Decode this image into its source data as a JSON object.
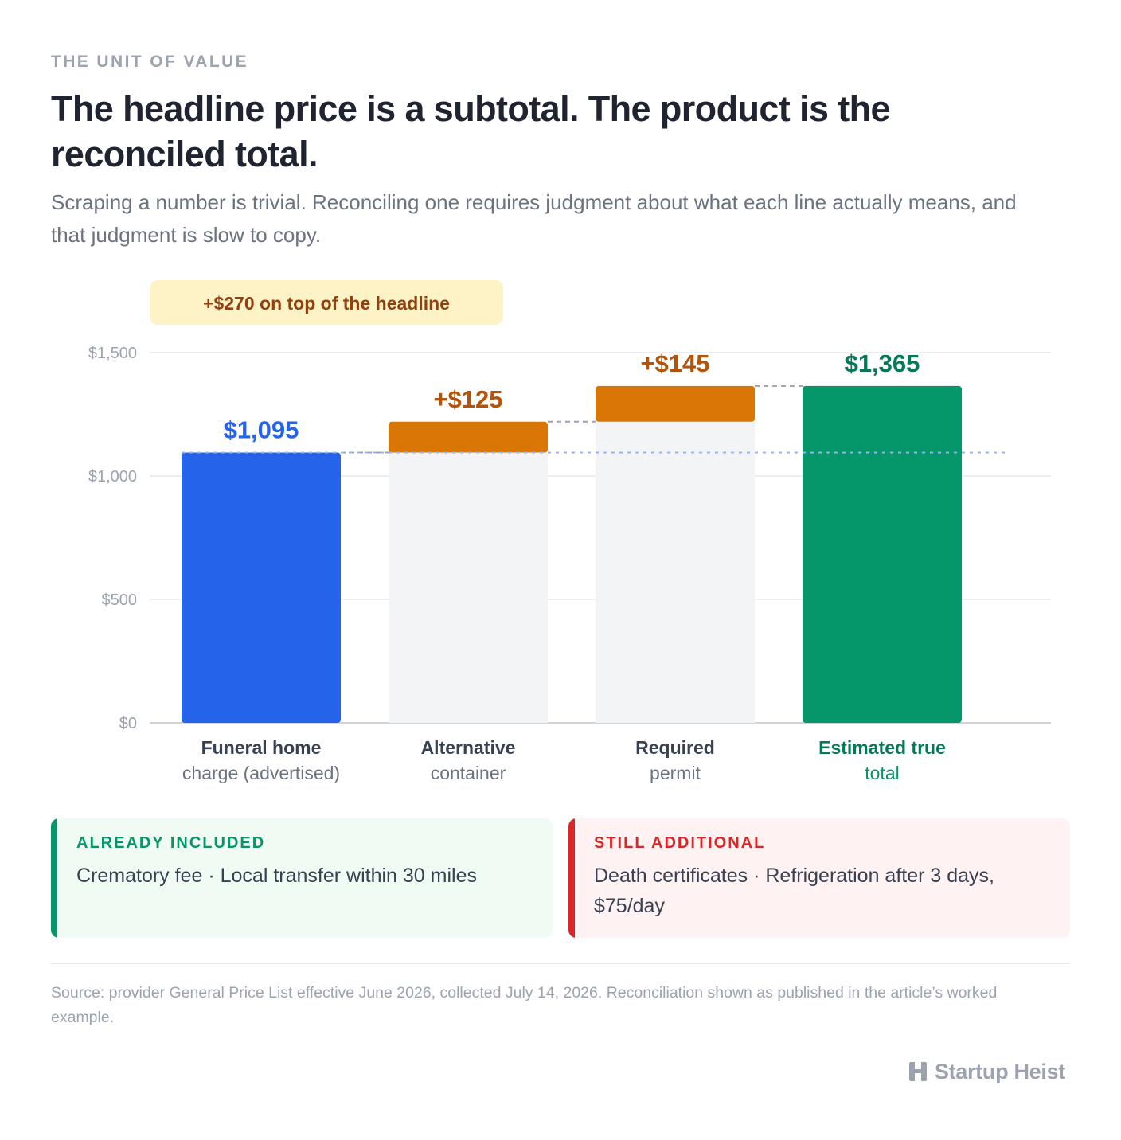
{
  "header": {
    "eyebrow": "THE UNIT OF VALUE",
    "title": "The headline price is a subtotal. The product is the reconciled total.",
    "subtitle": "Scraping a number is trivial. Reconciling one requires judgment about what each line actually means, and that judgment is slow to copy."
  },
  "chart_data": {
    "type": "bar",
    "subtype": "waterfall",
    "categories": [
      [
        "Funeral home",
        "charge (advertised)"
      ],
      [
        "Alternative",
        "container"
      ],
      [
        "Required",
        "permit"
      ],
      [
        "Estimated true",
        "total"
      ]
    ],
    "values": [
      1095,
      125,
      145,
      1365
    ],
    "value_labels": [
      "$1,095",
      "+$125",
      "+$145",
      "$1,365"
    ],
    "kinds": [
      "base",
      "increment",
      "increment",
      "total"
    ],
    "y_ticks": [
      0,
      500,
      1000,
      1500
    ],
    "y_tick_labels": [
      "$0",
      "$500",
      "$1,000",
      "$1,500"
    ],
    "ylim": [
      0,
      1500
    ],
    "annotation": "+$270 on top of the headline",
    "colors": {
      "base": "#2563eb",
      "increment": "#d97706",
      "increment_label": "#b45309",
      "total": "#059669",
      "total_label": "#047857",
      "ghost": "#f3f4f6",
      "grid": "#e5e7eb",
      "baseline": "#d1d5db",
      "callout_bg": "#fef3c7"
    }
  },
  "cards": {
    "included": {
      "title": "ALREADY INCLUDED",
      "body": "Crematory fee · Local transfer within 30 miles"
    },
    "additional": {
      "title": "STILL ADDITIONAL",
      "body": "Death certificates · Refrigeration after 3 days, $75/day"
    }
  },
  "footer": {
    "source": "Source: provider General Price List effective June 2026, collected July 14, 2026. Reconciliation shown as published in the article’s worked example.",
    "brand": "Startup Heist",
    "brand_icon": "h-logo-icon"
  }
}
